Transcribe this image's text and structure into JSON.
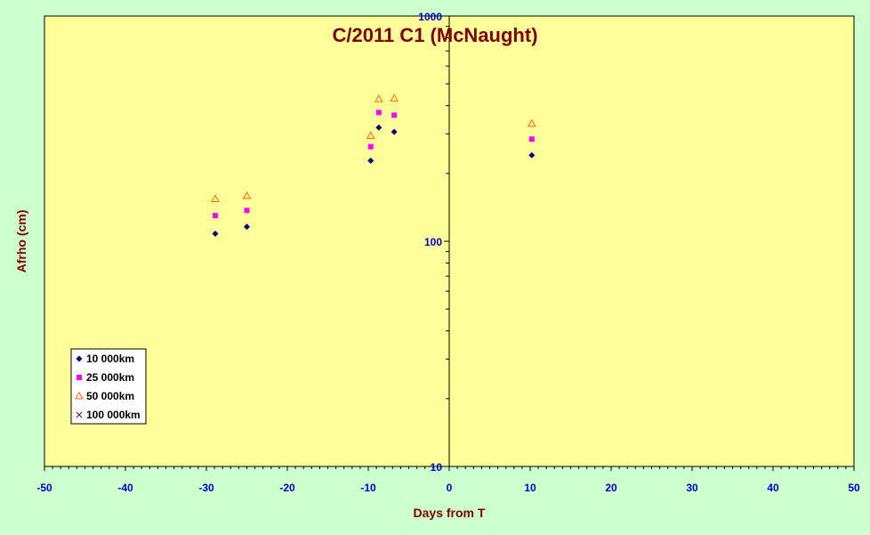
{
  "chart_data": {
    "type": "scatter",
    "title": "C/2011 C1 (McNaught)",
    "xlabel": "Days from T",
    "ylabel": "Afrho (cm)",
    "xlim": [
      -50,
      50
    ],
    "ylim": [
      10,
      1000
    ],
    "y_scale": "log",
    "x_ticks": [
      "-50",
      "-40",
      "-30",
      "-20",
      "-10",
      "0",
      "10",
      "20",
      "30",
      "40",
      "50"
    ],
    "y_ticks": [
      "10",
      "100",
      "1000"
    ],
    "legend_position": "bottom-left",
    "colors": {
      "plot_background": "#ffff99",
      "outer_background": "#ccffcc",
      "title": "#800000",
      "tick_labels": "#0000cc"
    },
    "series": [
      {
        "name": "10 000km",
        "marker": "diamond",
        "color": "#000080",
        "points": [
          [
            -28.9,
            108
          ],
          [
            -25.0,
            116
          ],
          [
            -9.7,
            228
          ],
          [
            -8.7,
            320
          ],
          [
            -6.8,
            306
          ],
          [
            10.2,
            241
          ]
        ]
      },
      {
        "name": "25 000km",
        "marker": "square",
        "color": "#ff00ff",
        "points": [
          [
            -28.9,
            130
          ],
          [
            -25.0,
            137
          ],
          [
            -9.7,
            263
          ],
          [
            -8.7,
            373
          ],
          [
            -6.8,
            363
          ],
          [
            10.2,
            284
          ]
        ]
      },
      {
        "name": "50 000km",
        "marker": "triangle",
        "color": "#ff6600",
        "points": [
          [
            -28.9,
            154
          ],
          [
            -25.0,
            159
          ],
          [
            -9.7,
            294
          ],
          [
            -8.7,
            428
          ],
          [
            -6.8,
            431
          ],
          [
            10.2,
            333
          ]
        ]
      },
      {
        "name": "100 000km",
        "marker": "x",
        "color": "#800000",
        "points": []
      }
    ]
  }
}
